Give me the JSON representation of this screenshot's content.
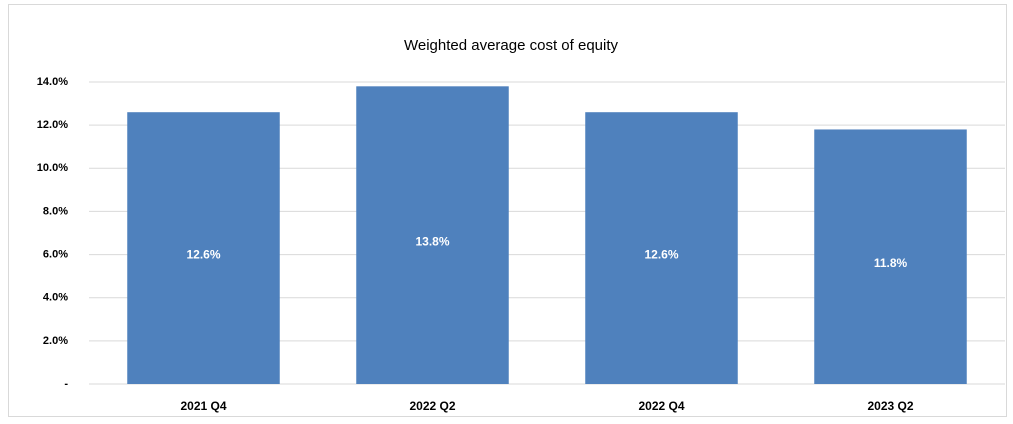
{
  "chart_data": {
    "type": "bar",
    "title": "Weighted average cost of equity",
    "categories": [
      "2021 Q4",
      "2022 Q2",
      "2022 Q4",
      "2023 Q2"
    ],
    "values": [
      12.6,
      13.8,
      12.6,
      11.8
    ],
    "value_labels": [
      "12.6%",
      "13.8%",
      "12.6%",
      "11.8%"
    ],
    "color": "#4f81bd",
    "ylim": [
      0,
      14
    ],
    "yticks": [
      {
        "value": 0,
        "label": "-"
      },
      {
        "value": 2,
        "label": "2.0%"
      },
      {
        "value": 4,
        "label": "4.0%"
      },
      {
        "value": 6,
        "label": "6.0%"
      },
      {
        "value": 8,
        "label": "8.0%"
      },
      {
        "value": 10,
        "label": "10.0%"
      },
      {
        "value": 12,
        "label": "12.0%"
      },
      {
        "value": 14,
        "label": "14.0%"
      }
    ],
    "grid": true
  }
}
